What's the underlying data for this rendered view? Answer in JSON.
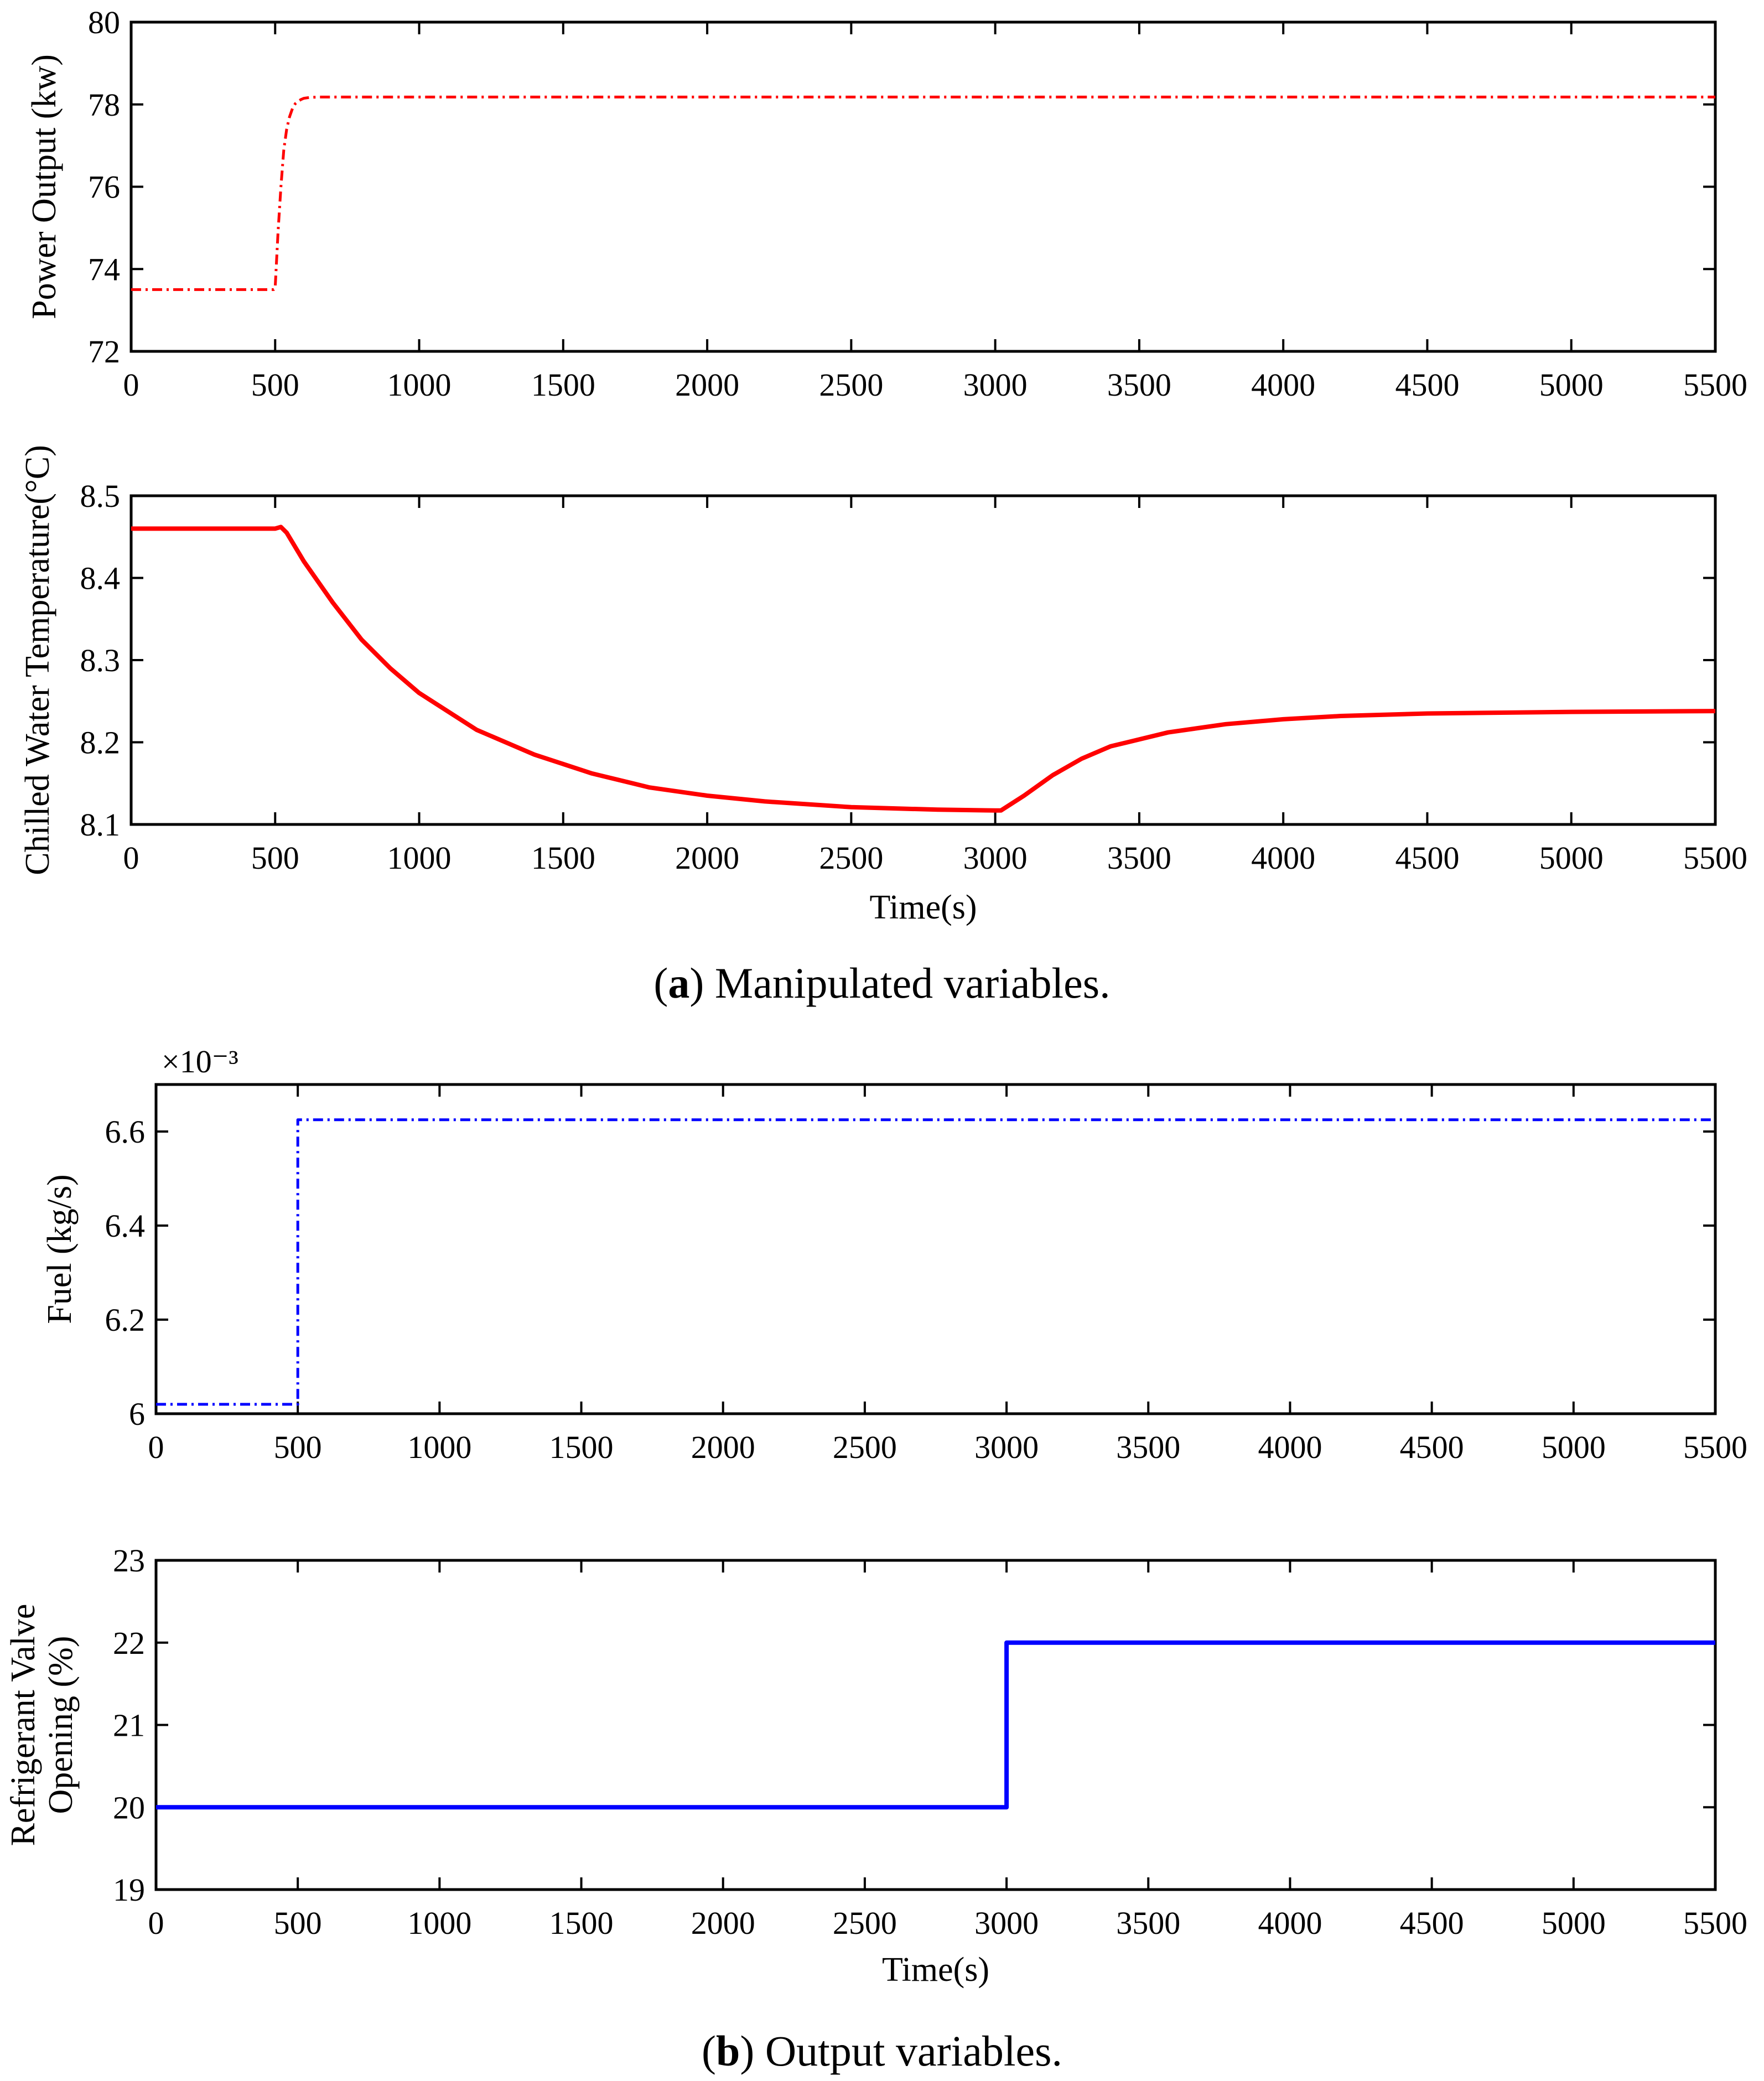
{
  "captions": {
    "a_letter": "a",
    "a_text": " Manipulated variables.",
    "b_letter": "b",
    "b_text": " Output variables."
  },
  "chart_data": [
    {
      "type": "line",
      "id": "power",
      "title": "",
      "xlabel": "",
      "ylabel": "Power Output (kw)",
      "xlim": [
        0,
        5500
      ],
      "ylim": [
        72,
        80
      ],
      "xticks": [
        0,
        500,
        1000,
        1500,
        2000,
        2500,
        3000,
        3500,
        4000,
        4500,
        5000,
        5500
      ],
      "yticks": [
        72,
        74,
        76,
        78,
        80
      ],
      "exponent_label": "",
      "series": [
        {
          "name": "Power Output",
          "color": "#ff0000",
          "style": "dashdot",
          "x": [
            0,
            495,
            500,
            510,
            520,
            530,
            540,
            550,
            560,
            570,
            580,
            590,
            600,
            620,
            650,
            700,
            1000,
            2000,
            3000,
            4000,
            5000,
            5500
          ],
          "y": [
            73.5,
            73.5,
            73.55,
            74.9,
            76.0,
            76.9,
            77.4,
            77.7,
            77.9,
            78.02,
            78.08,
            78.12,
            78.15,
            78.17,
            78.18,
            78.18,
            78.18,
            78.18,
            78.18,
            78.18,
            78.18,
            78.18
          ]
        }
      ]
    },
    {
      "type": "line",
      "id": "chilled",
      "title": "",
      "xlabel": "Time(s)",
      "ylabel": "Chilled Water Temperature(°C)",
      "xlim": [
        0,
        5500
      ],
      "ylim": [
        8.1,
        8.5
      ],
      "xticks": [
        0,
        500,
        1000,
        1500,
        2000,
        2500,
        3000,
        3500,
        4000,
        4500,
        5000,
        5500
      ],
      "yticks": [
        8.1,
        8.2,
        8.3,
        8.4,
        8.5
      ],
      "exponent_label": "",
      "series": [
        {
          "name": "Chilled Water Temperature",
          "color": "#ff0000",
          "style": "solid",
          "x": [
            0,
            500,
            520,
            540,
            600,
            700,
            800,
            900,
            1000,
            1200,
            1400,
            1600,
            1800,
            2000,
            2200,
            2500,
            2800,
            3000,
            3020,
            3100,
            3200,
            3300,
            3400,
            3600,
            3800,
            4000,
            4200,
            4500,
            5000,
            5500
          ],
          "y": [
            8.46,
            8.46,
            8.462,
            8.455,
            8.42,
            8.37,
            8.325,
            8.29,
            8.26,
            8.215,
            8.185,
            8.162,
            8.145,
            8.135,
            8.128,
            8.121,
            8.118,
            8.117,
            8.117,
            8.135,
            8.16,
            8.18,
            8.195,
            8.212,
            8.222,
            8.228,
            8.232,
            8.235,
            8.237,
            8.238
          ]
        }
      ]
    },
    {
      "type": "line",
      "id": "fuel",
      "title": "",
      "xlabel": "",
      "ylabel": "Fuel (kg/s)",
      "xlim": [
        0,
        5500
      ],
      "ylim": [
        6.0,
        6.7
      ],
      "xticks": [
        0,
        500,
        1000,
        1500,
        2000,
        2500,
        3000,
        3500,
        4000,
        4500,
        5000,
        5500
      ],
      "yticks": [
        6,
        6.2,
        6.4,
        6.6
      ],
      "exponent_label": "×10⁻³",
      "series": [
        {
          "name": "Fuel",
          "color": "#0000ff",
          "style": "dashdot",
          "x": [
            0,
            500,
            500,
            5500
          ],
          "y": [
            6.02,
            6.02,
            6.625,
            6.625
          ]
        }
      ]
    },
    {
      "type": "line",
      "id": "valve",
      "title": "",
      "xlabel": "Time(s)",
      "ylabel": "Refrigerant Valve Opening (%)",
      "ylabel_lines": [
        "Refrigerant Valve",
        "Opening (%)"
      ],
      "xlim": [
        0,
        5500
      ],
      "ylim": [
        19,
        23
      ],
      "xticks": [
        0,
        500,
        1000,
        1500,
        2000,
        2500,
        3000,
        3500,
        4000,
        4500,
        5000,
        5500
      ],
      "yticks": [
        19,
        20,
        21,
        22,
        23
      ],
      "exponent_label": "",
      "series": [
        {
          "name": "Refrigerant Valve Opening",
          "color": "#0000ff",
          "style": "solid",
          "x": [
            0,
            3000,
            3000,
            5500
          ],
          "y": [
            20,
            20,
            22,
            22
          ]
        }
      ]
    }
  ]
}
